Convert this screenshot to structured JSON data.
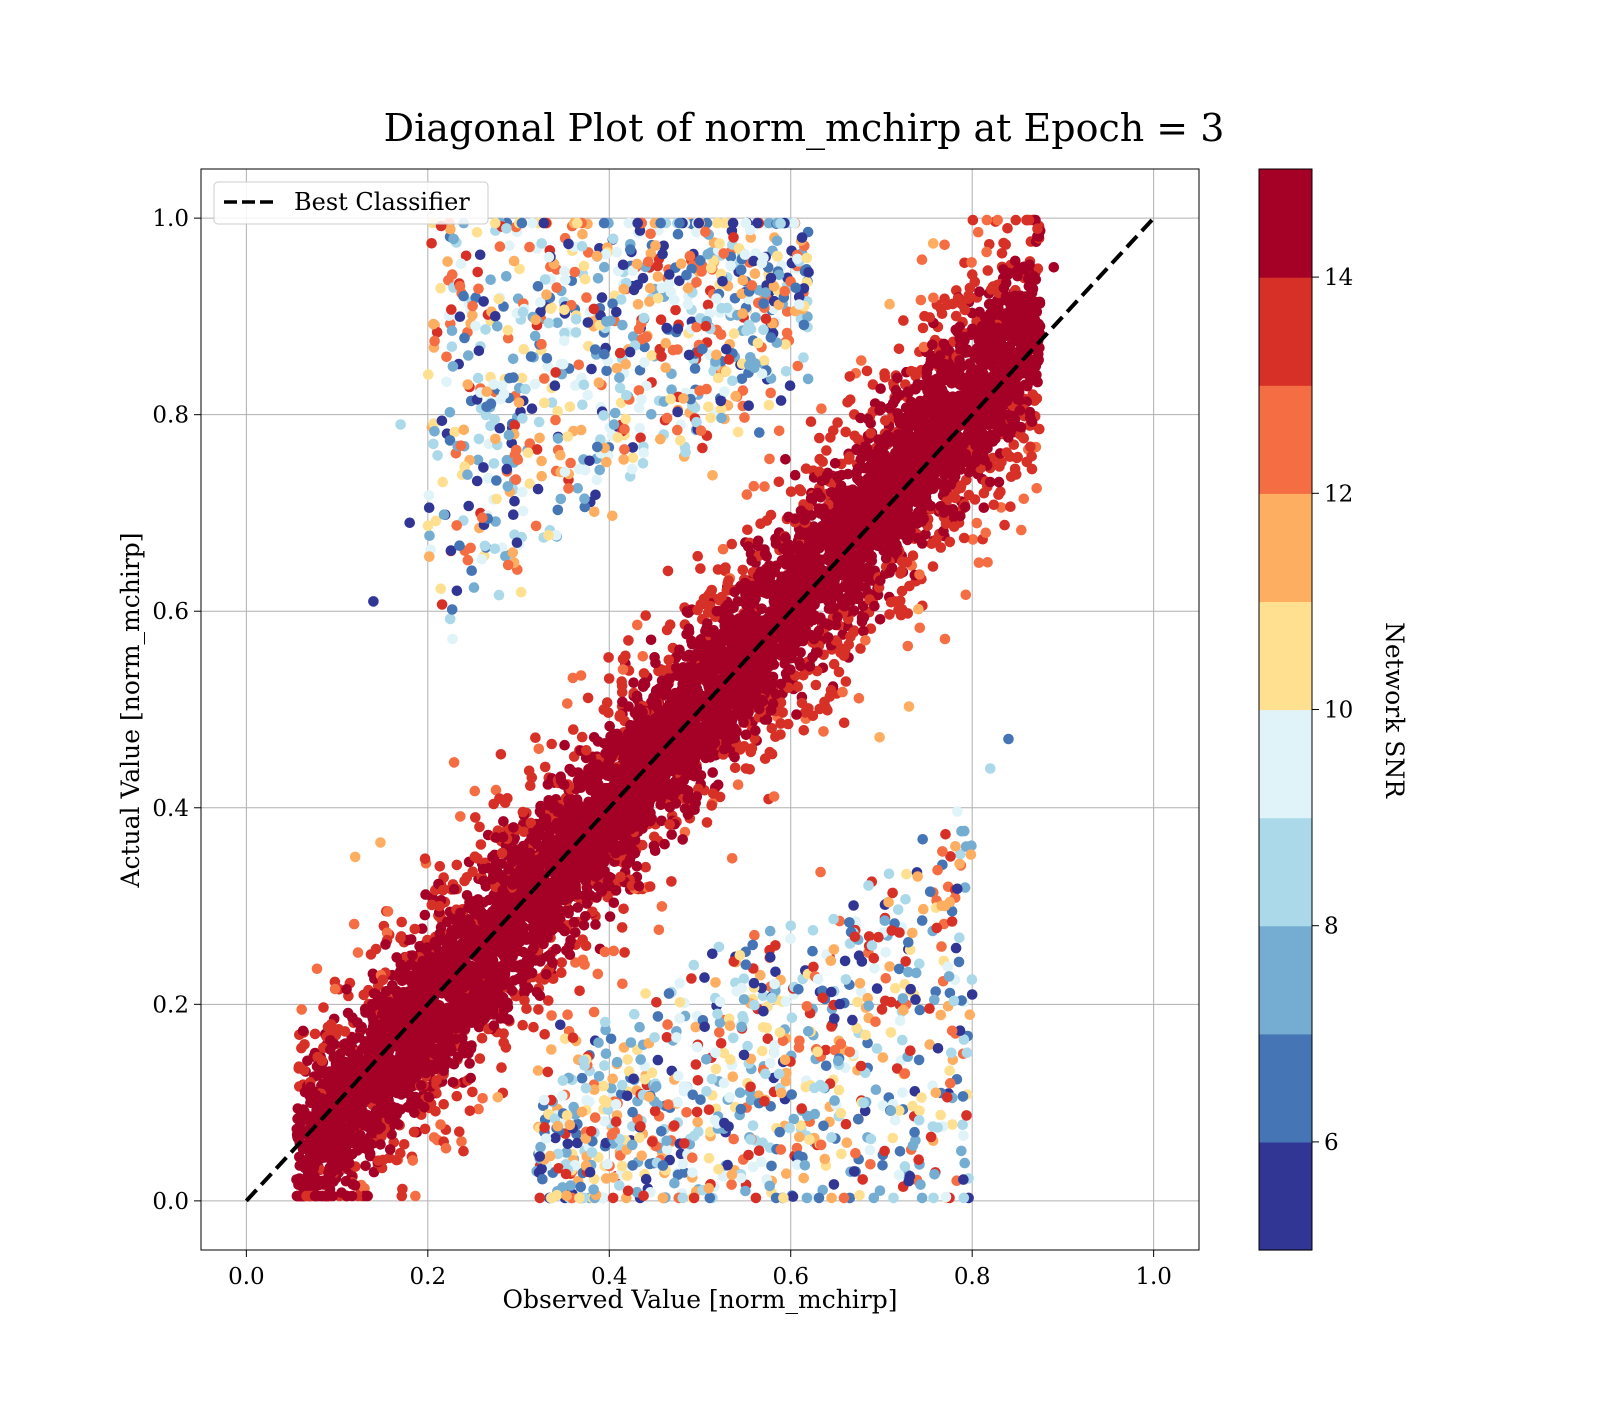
{
  "chart_data": {
    "type": "scatter",
    "title": "Diagonal Plot of norm_mchirp at Epoch = 3",
    "xlabel": "Observed Value [norm_mchirp]",
    "ylabel": "Actual Value [norm_mchirp]",
    "xlim": [
      -0.05,
      1.05
    ],
    "ylim": [
      -0.05,
      1.05
    ],
    "xticks": [
      0.0,
      0.2,
      0.4,
      0.6,
      0.8,
      1.0
    ],
    "yticks": [
      0.0,
      0.2,
      0.4,
      0.6,
      0.8,
      1.0
    ],
    "xtick_labels": [
      "0.0",
      "0.2",
      "0.4",
      "0.6",
      "0.8",
      "1.0"
    ],
    "ytick_labels": [
      "0.0",
      "0.2",
      "0.4",
      "0.6",
      "0.8",
      "1.0"
    ],
    "grid": true,
    "legend": {
      "placement": "upper-left",
      "entries": [
        "Best Classifier"
      ]
    },
    "reference_line": {
      "name": "Best Classifier",
      "style": "dashed",
      "color": "#000000",
      "x": [
        0.0,
        1.0
      ],
      "y": [
        0.0,
        1.0
      ]
    },
    "colorbar": {
      "label": "Network SNR",
      "range": [
        5,
        15
      ],
      "ticks": [
        6,
        8,
        10,
        12,
        14
      ],
      "tick_labels": [
        "6",
        "8",
        "10",
        "12",
        "14"
      ],
      "colormap": "RdYlBu_r",
      "bands": [
        "#313695",
        "#4575b4",
        "#74add1",
        "#abd9e9",
        "#e0f3f8",
        "#fee090",
        "#fdae61",
        "#f46d43",
        "#d73027",
        "#a50026"
      ]
    },
    "scatter_regions": [
      {
        "label": "dense core along diagonal",
        "center_line": [
          [
            0.06,
            0.06
          ],
          [
            0.87,
            0.95
          ]
        ],
        "half_width": 0.07,
        "snr": 14.8
      },
      {
        "label": "high-SNR band around diagonal",
        "center_line": [
          [
            0.05,
            0.05
          ],
          [
            0.87,
            0.92
          ]
        ],
        "half_width": 0.15,
        "snr": 13.8
      },
      {
        "label": "upper-left low-SNR cloud",
        "x_range": [
          0.13,
          0.6
        ],
        "y_range": [
          0.35,
          1.0
        ],
        "snr": 8
      },
      {
        "label": "lower-right low-SNR cloud",
        "x_range": [
          0.3,
          0.83
        ],
        "y_range": [
          0.0,
          0.45
        ],
        "snr": 8
      }
    ],
    "notable_points": [
      {
        "x": 0.14,
        "y": 0.61,
        "snr": 5.5
      },
      {
        "x": 0.17,
        "y": 0.79,
        "snr": 8.2
      },
      {
        "x": 0.12,
        "y": 0.35,
        "snr": 11.8
      },
      {
        "x": 0.8,
        "y": 0.21,
        "snr": 5.5
      },
      {
        "x": 0.73,
        "y": 0.02,
        "snr": 5.5
      },
      {
        "x": 0.84,
        "y": 0.47,
        "snr": 6.5
      },
      {
        "x": 0.82,
        "y": 0.44,
        "snr": 8.5
      },
      {
        "x": 0.18,
        "y": 0.69,
        "snr": 5.5
      },
      {
        "x": 0.76,
        "y": 0.11,
        "snr": 11.5
      },
      {
        "x": 0.55,
        "y": 0.01,
        "snr": 7.5
      },
      {
        "x": 0.67,
        "y": 0.03,
        "snr": 5.5
      },
      {
        "x": 0.89,
        "y": 0.95,
        "snr": 14.8
      }
    ]
  }
}
